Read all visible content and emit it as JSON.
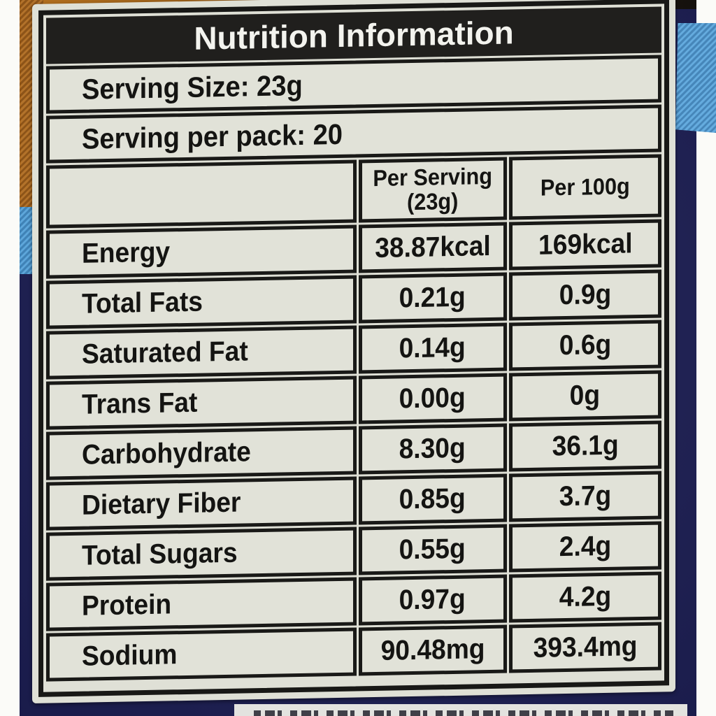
{
  "label": {
    "title": "Nutrition Information",
    "serving_size": "Serving Size: 23g",
    "serving_per_pack": "Serving per pack: 20",
    "column_headers": {
      "per_serving_line1": "Per Serving",
      "per_serving_line2": "(23g)",
      "per_100g": "Per 100g"
    },
    "rows": [
      {
        "name": "Energy",
        "per_serving": "38.87kcal",
        "per_100g": "169kcal"
      },
      {
        "name": "Total Fats",
        "per_serving": "0.21g",
        "per_100g": "0.9g"
      },
      {
        "name": "Saturated Fat",
        "per_serving": "0.14g",
        "per_100g": "0.6g"
      },
      {
        "name": "Trans Fat",
        "per_serving": "0.00g",
        "per_100g": "0g"
      },
      {
        "name": "Carbohydrate",
        "per_serving": "8.30g",
        "per_100g": "36.1g"
      },
      {
        "name": "Dietary Fiber",
        "per_serving": "0.85g",
        "per_100g": "3.7g"
      },
      {
        "name": "Total Sugars",
        "per_serving": "0.55g",
        "per_100g": "2.4g"
      },
      {
        "name": "Protein",
        "per_serving": "0.97g",
        "per_100g": "4.2g"
      },
      {
        "name": "Sodium",
        "per_serving": "90.48mg",
        "per_100g": "393.4mg"
      }
    ]
  },
  "colors": {
    "label_background": "#dfe0d6",
    "cell_background": "#e1e2d8",
    "border_black": "#191917",
    "header_band_background": "#201f1d",
    "header_band_text": "#f3f3ee",
    "text_black": "#141412",
    "fabric_navy": "#1d1f55",
    "fabric_orange": "#a8661f",
    "fabric_light_blue": "#55a1d8",
    "canvas_white": "#fbfbf8"
  }
}
